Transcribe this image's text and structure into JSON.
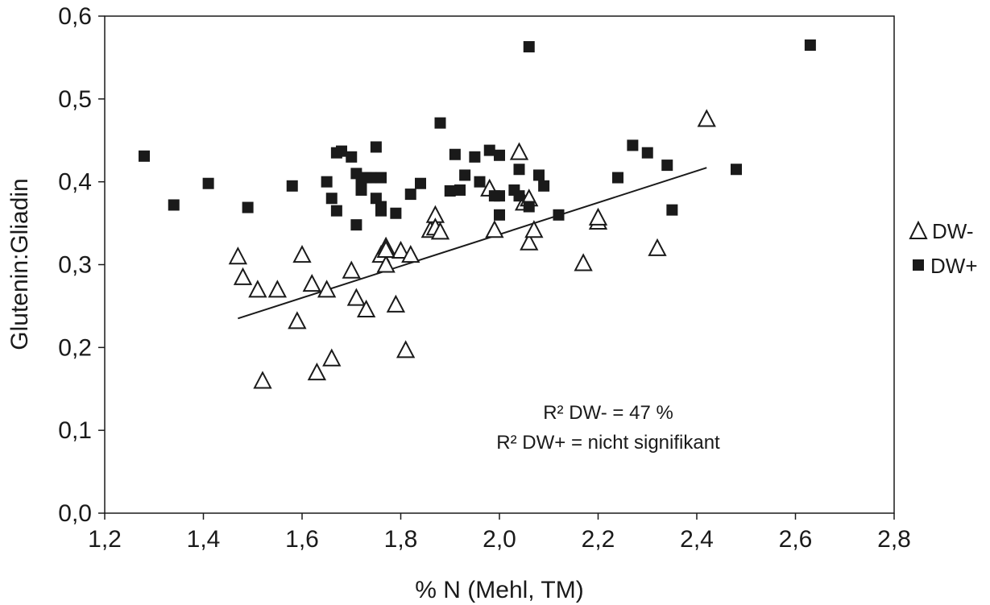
{
  "chart_data": {
    "type": "scatter",
    "title": "",
    "xlabel": "% N (Mehl, TM)",
    "ylabel": "Glutenin:Gliadin",
    "xlim": [
      1.2,
      2.8
    ],
    "ylim": [
      0.0,
      0.6
    ],
    "x_ticks": [
      1.2,
      1.4,
      1.6,
      1.8,
      2.0,
      2.2,
      2.4,
      2.6,
      2.8
    ],
    "x_tick_labels": [
      "1,2",
      "1,4",
      "1,6",
      "1,8",
      "2,0",
      "2,2",
      "2,4",
      "2,6",
      "2,8"
    ],
    "y_ticks": [
      0.0,
      0.1,
      0.2,
      0.3,
      0.4,
      0.5,
      0.6
    ],
    "y_tick_labels": [
      "0,0",
      "0,1",
      "0,2",
      "0,3",
      "0,4",
      "0,5",
      "0,6"
    ],
    "grid": false,
    "legend_position": "right",
    "annotations": [
      "R² DW-  = 47 %",
      "R² DW+ = nicht signifikant"
    ],
    "trendline": {
      "series": "DW-",
      "x": [
        1.47,
        2.42
      ],
      "y": [
        0.235,
        0.417
      ]
    },
    "series": [
      {
        "name": "DW-",
        "marker": "open-triangle",
        "color": "#1a1a1a",
        "x": [
          1.47,
          1.48,
          1.51,
          1.55,
          1.6,
          1.59,
          1.62,
          1.52,
          1.63,
          1.65,
          1.66,
          1.7,
          1.71,
          1.73,
          1.76,
          1.77,
          1.77,
          1.79,
          1.8,
          1.81,
          1.82,
          1.86,
          1.87,
          1.87,
          1.88,
          1.99,
          1.98,
          2.04,
          2.05,
          2.06,
          2.06,
          2.07,
          2.17,
          2.2,
          2.2,
          2.32,
          2.42,
          1.77
        ],
        "y": [
          0.31,
          0.285,
          0.27,
          0.27,
          0.312,
          0.232,
          0.277,
          0.16,
          0.17,
          0.27,
          0.187,
          0.293,
          0.26,
          0.246,
          0.312,
          0.3,
          0.322,
          0.252,
          0.317,
          0.197,
          0.312,
          0.342,
          0.36,
          0.345,
          0.34,
          0.342,
          0.392,
          0.436,
          0.375,
          0.327,
          0.38,
          0.342,
          0.302,
          0.352,
          0.357,
          0.32,
          0.476,
          0.318
        ]
      },
      {
        "name": "DW+",
        "marker": "filled-square",
        "color": "#1a1a1a",
        "x": [
          1.28,
          1.34,
          1.41,
          1.49,
          1.58,
          1.65,
          1.66,
          1.67,
          1.67,
          1.68,
          1.7,
          1.71,
          1.71,
          1.72,
          1.72,
          1.73,
          1.74,
          1.75,
          1.75,
          1.76,
          1.76,
          1.76,
          1.79,
          1.82,
          1.84,
          1.88,
          1.9,
          1.91,
          1.92,
          1.93,
          1.95,
          1.96,
          1.98,
          1.99,
          2.0,
          2.0,
          2.0,
          2.03,
          2.04,
          2.04,
          2.06,
          2.06,
          2.08,
          2.09,
          2.12,
          2.24,
          2.27,
          2.3,
          2.34,
          2.35,
          2.48,
          2.63
        ],
        "y": [
          0.431,
          0.372,
          0.398,
          0.369,
          0.395,
          0.4,
          0.38,
          0.365,
          0.435,
          0.437,
          0.43,
          0.41,
          0.348,
          0.39,
          0.4,
          0.405,
          0.405,
          0.442,
          0.38,
          0.365,
          0.405,
          0.37,
          0.362,
          0.385,
          0.398,
          0.471,
          0.389,
          0.433,
          0.39,
          0.408,
          0.43,
          0.4,
          0.438,
          0.383,
          0.432,
          0.36,
          0.383,
          0.39,
          0.383,
          0.415,
          0.563,
          0.37,
          0.408,
          0.395,
          0.36,
          0.405,
          0.444,
          0.435,
          0.42,
          0.366,
          0.415,
          0.565
        ]
      }
    ]
  }
}
